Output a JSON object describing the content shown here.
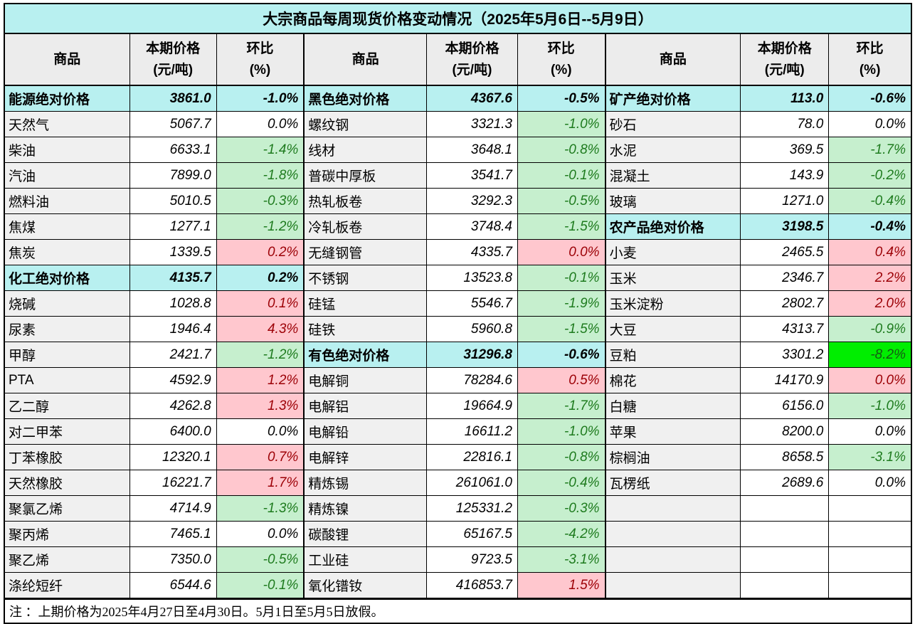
{
  "title": "大宗商品每周现货价格变动情况（2025年5月6日--5月9日）",
  "note": "注 ：上期价格为2025年4月27日至4月30日。5月1日至5月5日放假。",
  "header": {
    "commodity": "商品",
    "price_line1": "本期价格",
    "price_line2": "(元/吨)",
    "change_line1": "环比",
    "change_line2": "(%)"
  },
  "colors": {
    "title_bg": "#B8F0F0",
    "category_bg": "#B8F0F0",
    "header_bg": "#ECECEC",
    "name_cell_bg": "#F0F0F0",
    "increase_bg": "#FFC7CE",
    "increase_text": "#9C0006",
    "decrease_bg": "#C6EFCE",
    "decrease_text": "#1E7B1E",
    "big_decrease_bg": "#00EE00",
    "big_decrease_text": "#145C14",
    "border": "#000000"
  },
  "columns": [
    {
      "rows": [
        {
          "name": "能源绝对价格",
          "price": "3861.0",
          "change": "-1.0%",
          "style": "cat"
        },
        {
          "name": "天然气",
          "price": "5067.7",
          "change": "0.0%",
          "style": "flat"
        },
        {
          "name": "柴油",
          "price": "6633.1",
          "change": "-1.4%",
          "style": "down"
        },
        {
          "name": "汽油",
          "price": "7899.0",
          "change": "-1.8%",
          "style": "down"
        },
        {
          "name": "燃料油",
          "price": "5010.5",
          "change": "-0.3%",
          "style": "down"
        },
        {
          "name": "焦煤",
          "price": "1277.1",
          "change": "-1.2%",
          "style": "down"
        },
        {
          "name": "焦炭",
          "price": "1339.5",
          "change": "0.2%",
          "style": "up"
        },
        {
          "name": "化工绝对价格",
          "price": "4135.7",
          "change": "0.2%",
          "style": "cat"
        },
        {
          "name": "烧碱",
          "price": "1028.8",
          "change": "0.1%",
          "style": "up"
        },
        {
          "name": "尿素",
          "price": "1946.4",
          "change": "4.3%",
          "style": "up"
        },
        {
          "name": "甲醇",
          "price": "2421.7",
          "change": "-1.2%",
          "style": "down"
        },
        {
          "name": "PTA",
          "price": "4592.9",
          "change": "1.2%",
          "style": "up"
        },
        {
          "name": "乙二醇",
          "price": "4262.8",
          "change": "1.3%",
          "style": "up"
        },
        {
          "name": "对二甲苯",
          "price": "6400.0",
          "change": "0.0%",
          "style": "flat"
        },
        {
          "name": "丁苯橡胶",
          "price": "12320.1",
          "change": "0.7%",
          "style": "up"
        },
        {
          "name": "天然橡胶",
          "price": "16221.7",
          "change": "1.7%",
          "style": "up"
        },
        {
          "name": "聚氯乙烯",
          "price": "4714.9",
          "change": "-1.3%",
          "style": "down"
        },
        {
          "name": "聚丙烯",
          "price": "7465.1",
          "change": "0.0%",
          "style": "flat"
        },
        {
          "name": "聚乙烯",
          "price": "7350.0",
          "change": "-0.5%",
          "style": "down"
        },
        {
          "name": "涤纶短纤",
          "price": "6544.6",
          "change": "-0.1%",
          "style": "down"
        }
      ]
    },
    {
      "rows": [
        {
          "name": "黑色绝对价格",
          "price": "4367.6",
          "change": "-0.5%",
          "style": "cat"
        },
        {
          "name": "螺纹钢",
          "price": "3321.3",
          "change": "-1.0%",
          "style": "down"
        },
        {
          "name": "线材",
          "price": "3648.1",
          "change": "-0.8%",
          "style": "down"
        },
        {
          "name": "普碳中厚板",
          "price": "3541.7",
          "change": "-0.1%",
          "style": "down"
        },
        {
          "name": "热轧板卷",
          "price": "3292.3",
          "change": "-0.5%",
          "style": "down"
        },
        {
          "name": "冷轧板卷",
          "price": "3748.4",
          "change": "-1.5%",
          "style": "down"
        },
        {
          "name": "无缝钢管",
          "price": "4335.7",
          "change": "0.0%",
          "style": "up"
        },
        {
          "name": "不锈钢",
          "price": "13523.8",
          "change": "-0.1%",
          "style": "down"
        },
        {
          "name": "硅锰",
          "price": "5546.7",
          "change": "-1.9%",
          "style": "down"
        },
        {
          "name": "硅铁",
          "price": "5960.8",
          "change": "-1.5%",
          "style": "down"
        },
        {
          "name": "有色绝对价格",
          "price": "31296.8",
          "change": "-0.6%",
          "style": "cat"
        },
        {
          "name": "电解铜",
          "price": "78284.6",
          "change": "0.5%",
          "style": "up"
        },
        {
          "name": "电解铝",
          "price": "19664.9",
          "change": "-1.7%",
          "style": "down"
        },
        {
          "name": "电解铅",
          "price": "16611.2",
          "change": "-1.0%",
          "style": "down"
        },
        {
          "name": "电解锌",
          "price": "22816.1",
          "change": "-0.8%",
          "style": "down"
        },
        {
          "name": "精炼锡",
          "price": "261061.0",
          "change": "-0.4%",
          "style": "down"
        },
        {
          "name": "精炼镍",
          "price": "125331.2",
          "change": "-0.3%",
          "style": "down"
        },
        {
          "name": "碳酸锂",
          "price": "65167.5",
          "change": "-4.2%",
          "style": "down"
        },
        {
          "name": "工业硅",
          "price": "9723.5",
          "change": "-3.1%",
          "style": "down"
        },
        {
          "name": "氧化镨钕",
          "price": "416853.7",
          "change": "1.5%",
          "style": "up"
        }
      ]
    },
    {
      "rows": [
        {
          "name": "矿产绝对价格",
          "price": "113.0",
          "change": "-0.6%",
          "style": "cat"
        },
        {
          "name": "砂石",
          "price": "78.0",
          "change": "0.0%",
          "style": "flat"
        },
        {
          "name": "水泥",
          "price": "369.5",
          "change": "-1.7%",
          "style": "down"
        },
        {
          "name": "混凝土",
          "price": "143.9",
          "change": "-0.2%",
          "style": "down"
        },
        {
          "name": "玻璃",
          "price": "1271.0",
          "change": "-0.4%",
          "style": "down"
        },
        {
          "name": "农产品绝对价格",
          "price": "3198.5",
          "change": "-0.4%",
          "style": "cat"
        },
        {
          "name": "小麦",
          "price": "2465.5",
          "change": "0.4%",
          "style": "up"
        },
        {
          "name": "玉米",
          "price": "2346.7",
          "change": "2.2%",
          "style": "up"
        },
        {
          "name": "玉米淀粉",
          "price": "2802.7",
          "change": "2.0%",
          "style": "up"
        },
        {
          "name": "大豆",
          "price": "4313.7",
          "change": "-0.9%",
          "style": "down"
        },
        {
          "name": "豆粕",
          "price": "3301.2",
          "change": "-8.2%",
          "style": "hot"
        },
        {
          "name": "棉花",
          "price": "14170.9",
          "change": "0.0%",
          "style": "up"
        },
        {
          "name": "白糖",
          "price": "6156.0",
          "change": "-1.0%",
          "style": "down"
        },
        {
          "name": "苹果",
          "price": "8200.0",
          "change": "0.0%",
          "style": "flat"
        },
        {
          "name": "棕榈油",
          "price": "8658.5",
          "change": "-3.1%",
          "style": "down"
        },
        {
          "name": "瓦楞纸",
          "price": "2689.6",
          "change": "0.0%",
          "style": "flat"
        },
        {
          "name": "",
          "price": "",
          "change": "",
          "style": "empty"
        },
        {
          "name": "",
          "price": "",
          "change": "",
          "style": "empty"
        },
        {
          "name": "",
          "price": "",
          "change": "",
          "style": "empty"
        },
        {
          "name": "",
          "price": "",
          "change": "",
          "style": "empty"
        }
      ]
    }
  ]
}
